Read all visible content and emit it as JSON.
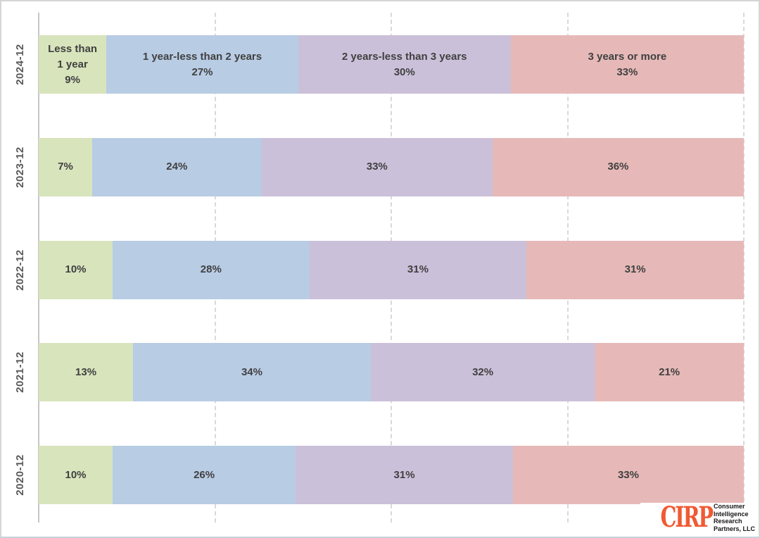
{
  "chart_data": {
    "type": "bar",
    "variant": "100%-stacked-horizontal",
    "title": "",
    "xlabel": "",
    "ylabel": "",
    "value_suffix": "%",
    "xlim": [
      0,
      100
    ],
    "grid": true,
    "gridlines_at_percent": [
      25,
      50,
      75,
      100
    ],
    "legend": "series names shown inline in first row",
    "categories": [
      "2024-12",
      "2023-12",
      "2022-12",
      "2021-12",
      "2020-12"
    ],
    "series": [
      {
        "name": "Less than 1 year",
        "color": "#d8e4bc",
        "values": [
          9,
          7,
          10,
          13,
          10
        ]
      },
      {
        "name": "1 year-less than 2 years",
        "color": "#b8cce4",
        "values": [
          27,
          24,
          28,
          34,
          26
        ]
      },
      {
        "name": "2 years-less than 3 years",
        "color": "#cbc0d9",
        "values": [
          30,
          33,
          31,
          32,
          31
        ]
      },
      {
        "name": "3 years or more",
        "color": "#e6b9b8",
        "values": [
          33,
          36,
          31,
          21,
          33
        ]
      }
    ]
  },
  "logo": {
    "acronym": "CIRP",
    "lines": [
      "Consumer",
      "Intelligence",
      "Research",
      "Partners, LLC"
    ],
    "accent_color": "#f05a33",
    "text_color": "#161616"
  },
  "style": {
    "segment_text_color": "#404040",
    "category_label_color": "#595959",
    "gridline_color": "#d9d9d9",
    "axis_line_color": "#c6c6c6",
    "background": "#ffffff",
    "border_color": "#d5d5d5"
  }
}
